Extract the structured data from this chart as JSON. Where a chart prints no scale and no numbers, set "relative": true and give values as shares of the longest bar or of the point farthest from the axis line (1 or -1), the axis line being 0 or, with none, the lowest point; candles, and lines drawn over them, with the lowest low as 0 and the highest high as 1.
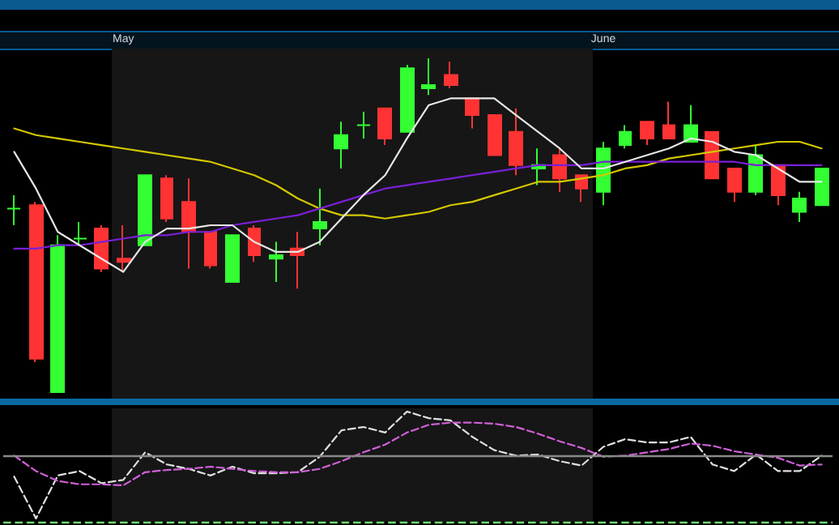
{
  "chart_data": [
    {
      "type": "candlestick",
      "relative": true,
      "categories": [
        null,
        null,
        null,
        null,
        null,
        "May",
        null,
        null,
        null,
        null,
        null,
        null,
        null,
        null,
        null,
        null,
        null,
        null,
        null,
        null,
        null,
        null,
        null,
        null,
        null,
        null,
        null,
        "June",
        null,
        null,
        null,
        null,
        null,
        null,
        null,
        null,
        null,
        null
      ],
      "colors": [
        "#33ff33",
        "#ff3333",
        "#33ff33",
        "#33ff33",
        "#ff3333",
        "#ff3333",
        "#33ff33",
        "#ff3333",
        "#ff3333",
        "#ff3333",
        "#33ff33",
        "#ff3333",
        "#33ff33",
        "#ff3333",
        "#33ff33",
        "#33ff33",
        "#33ff33",
        "#ff3333",
        "#33ff33",
        "#33ff33",
        "#ff3333",
        "#ff3333",
        "#ff3333",
        "#ff3333",
        "#33ff33",
        "#ff3333",
        "#ff3333",
        "#33ff33",
        "#33ff33",
        "#ff3333",
        "#ff3333",
        "#33ff33",
        "#ff3333",
        "#ff3333",
        "#33ff33",
        "#ff3333",
        "#33ff33",
        "#33ff33"
      ],
      "ohlc": [
        [
          0.55,
          0.59,
          0.5,
          0.55
        ],
        [
          0.56,
          0.57,
          0.09,
          0.1
        ],
        [
          0,
          0.47,
          0,
          0.44
        ],
        [
          0.46,
          0.51,
          0.44,
          0.46
        ],
        [
          0.49,
          0.5,
          0.36,
          0.37
        ],
        [
          0.4,
          0.5,
          0.36,
          0.39
        ],
        [
          0.44,
          0.65,
          0.44,
          0.65
        ],
        [
          0.64,
          0.65,
          0.51,
          0.52
        ],
        [
          0.57,
          0.64,
          0.37,
          0.48
        ],
        [
          0.48,
          0.48,
          0.37,
          0.38
        ],
        [
          0.33,
          0.47,
          0.33,
          0.47
        ],
        [
          0.49,
          0.5,
          0.39,
          0.41
        ],
        [
          0.4,
          0.45,
          0.33,
          0.41
        ],
        [
          0.43,
          0.48,
          0.31,
          0.41
        ],
        [
          0.49,
          0.61,
          0.44,
          0.51
        ],
        [
          0.73,
          0.81,
          0.67,
          0.77
        ],
        [
          0.8,
          0.84,
          0.76,
          0.8
        ],
        [
          0.85,
          0.85,
          0.74,
          0.76
        ],
        [
          0.78,
          0.98,
          0.78,
          0.97
        ],
        [
          0.91,
          1,
          0.89,
          0.92
        ],
        [
          0.95,
          0.99,
          0.91,
          0.92
        ],
        [
          0.88,
          0.88,
          0.79,
          0.83
        ],
        [
          0.83,
          0.83,
          0.71,
          0.71
        ],
        [
          0.78,
          0.85,
          0.65,
          0.68
        ],
        [
          0.67,
          0.73,
          0.62,
          0.68
        ],
        [
          0.71,
          0.73,
          0.6,
          0.64
        ],
        [
          0.65,
          0.65,
          0.57,
          0.61
        ],
        [
          0.6,
          0.75,
          0.56,
          0.73
        ],
        [
          0.74,
          0.8,
          0.73,
          0.78
        ],
        [
          0.81,
          0.81,
          0.74,
          0.76
        ],
        [
          0.8,
          0.87,
          0.76,
          0.76
        ],
        [
          0.75,
          0.86,
          0.75,
          0.8
        ],
        [
          0.78,
          0.78,
          0.64,
          0.64
        ],
        [
          0.67,
          0.67,
          0.57,
          0.6
        ],
        [
          0.6,
          0.74,
          0.59,
          0.71
        ],
        [
          0.68,
          0.68,
          0.56,
          0.59
        ],
        [
          0.54,
          0.6,
          0.51,
          0.58
        ],
        [
          0.56,
          0.67,
          0.56,
          0.67
        ]
      ],
      "series": [
        {
          "type": "line",
          "color": "#e6e6e6",
          "values": [
            0.72,
            0.61,
            0.48,
            0.44,
            0.4,
            0.36,
            0.45,
            0.49,
            0.49,
            0.5,
            0.5,
            0.45,
            0.42,
            0.42,
            0.45,
            0.52,
            0.59,
            0.65,
            0.76,
            0.86,
            0.88,
            0.88,
            0.88,
            0.83,
            0.78,
            0.73,
            0.67,
            0.67,
            0.69,
            0.71,
            0.73,
            0.76,
            0.75,
            0.72,
            0.71,
            0.67,
            0.63,
            0.63
          ]
        },
        {
          "type": "line",
          "color": "#7a1fd6",
          "values": [
            0.43,
            0.43,
            0.44,
            0.44,
            0.45,
            0.46,
            0.47,
            0.47,
            0.48,
            0.48,
            0.5,
            0.51,
            0.52,
            0.53,
            0.55,
            0.57,
            0.59,
            0.61,
            0.62,
            0.63,
            0.64,
            0.65,
            0.66,
            0.67,
            0.68,
            0.68,
            0.68,
            0.69,
            0.69,
            0.69,
            0.69,
            0.69,
            0.69,
            0.69,
            0.68,
            0.68,
            0.68,
            0.68
          ]
        },
        {
          "type": "line",
          "color": "#d4c800",
          "values": [
            0.79,
            0.77,
            0.76,
            0.75,
            0.74,
            0.73,
            0.72,
            0.71,
            0.7,
            0.69,
            0.67,
            0.65,
            0.62,
            0.58,
            0.55,
            0.53,
            0.53,
            0.52,
            0.53,
            0.54,
            0.56,
            0.57,
            0.59,
            0.61,
            0.63,
            0.63,
            0.64,
            0.65,
            0.67,
            0.68,
            0.7,
            0.71,
            0.72,
            0.73,
            0.74,
            0.75,
            0.75,
            0.73
          ]
        }
      ],
      "marker": "none"
    },
    {
      "type": "line",
      "relative": true,
      "line_style": "dashed",
      "marker": "none",
      "categories": [
        null,
        null,
        null,
        null,
        null,
        null,
        null,
        null,
        null,
        null,
        null,
        null,
        null,
        null,
        null,
        null,
        null,
        null,
        null,
        null,
        null,
        null,
        null,
        null,
        null,
        null,
        null,
        null,
        null,
        null,
        null,
        null,
        null,
        null,
        null,
        null,
        null,
        null
      ],
      "series": [
        {
          "color": "#e0e0e0",
          "values": [
            0.41,
            0.03,
            0.42,
            0.46,
            0.35,
            0.38,
            0.63,
            0.52,
            0.48,
            0.42,
            0.5,
            0.44,
            0.44,
            0.45,
            0.59,
            0.83,
            0.86,
            0.81,
            1.0,
            0.94,
            0.92,
            0.77,
            0.65,
            0.6,
            0.61,
            0.55,
            0.51,
            0.68,
            0.75,
            0.72,
            0.72,
            0.77,
            0.52,
            0.46,
            0.61,
            0.46,
            0.46,
            0.6
          ]
        },
        {
          "color": "#d060d8",
          "values": [
            0.6,
            0.46,
            0.37,
            0.34,
            0.34,
            0.33,
            0.45,
            0.47,
            0.48,
            0.5,
            0.48,
            0.46,
            0.45,
            0.45,
            0.48,
            0.55,
            0.63,
            0.7,
            0.81,
            0.88,
            0.9,
            0.9,
            0.89,
            0.86,
            0.8,
            0.73,
            0.67,
            0.59,
            0.6,
            0.63,
            0.66,
            0.71,
            0.69,
            0.64,
            0.61,
            0.58,
            0.51,
            0.52
          ]
        }
      ],
      "ref_lines": [
        {
          "axis": "y",
          "value": 0.6,
          "color": "#8a8a8a",
          "line_style": "solid"
        },
        {
          "axis": "y",
          "value": 0,
          "color": "#6fdc6f",
          "line_style": "dashed"
        }
      ]
    }
  ]
}
